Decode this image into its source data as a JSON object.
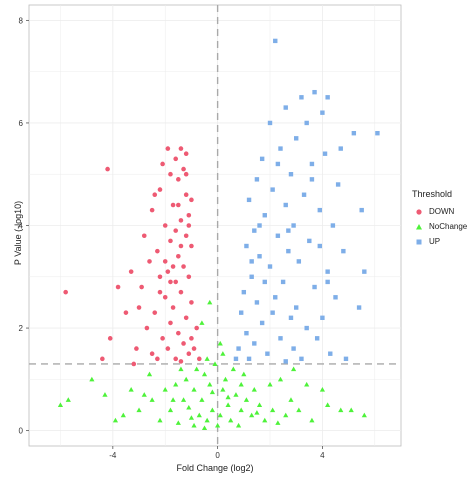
{
  "chart_data": {
    "type": "scatter",
    "title": "",
    "xlabel": "Fold Change (log2)",
    "ylabel": "P Value (-log10)",
    "xlim": [
      -7.2,
      7.0
    ],
    "ylim": [
      -0.3,
      8.3
    ],
    "x_ticks": [
      -4,
      0,
      4
    ],
    "y_ticks": [
      0,
      2,
      4,
      6,
      8
    ],
    "threshold_lines": {
      "x": 0,
      "y": 1.3
    },
    "grid": true,
    "legend_position": "right",
    "legend": {
      "title": "Threshold",
      "items": [
        {
          "label": "DOWN",
          "color": "#ee5a73",
          "shape": "circle"
        },
        {
          "label": "NoChange",
          "color": "#4ef23a",
          "shape": "triangle"
        },
        {
          "label": "UP",
          "color": "#7eaee8",
          "shape": "square"
        }
      ]
    },
    "series": [
      {
        "name": "DOWN",
        "color": "#ee5a73",
        "points": [
          [
            -1.9,
            5.5
          ],
          [
            -1.4,
            5.5
          ],
          [
            -1.2,
            5.4
          ],
          [
            -1.6,
            5.3
          ],
          [
            -2.1,
            5.2
          ],
          [
            -1.8,
            5.0
          ],
          [
            -1.3,
            5.1
          ],
          [
            -1.5,
            4.9
          ],
          [
            -2.2,
            4.7
          ],
          [
            -1.2,
            4.6
          ],
          [
            -1.0,
            4.5
          ],
          [
            -1.7,
            4.4
          ],
          [
            -2.5,
            4.3
          ],
          [
            -1.1,
            4.2
          ],
          [
            -1.4,
            4.1
          ],
          [
            -2.0,
            4.0
          ],
          [
            -1.6,
            3.9
          ],
          [
            -2.8,
            3.8
          ],
          [
            -1.2,
            3.8
          ],
          [
            -1.8,
            3.7
          ],
          [
            -2.3,
            3.5
          ],
          [
            -1.0,
            3.6
          ],
          [
            -1.5,
            3.4
          ],
          [
            -2.6,
            3.3
          ],
          [
            -1.3,
            3.2
          ],
          [
            -1.9,
            3.1
          ],
          [
            -2.2,
            3.0
          ],
          [
            -1.1,
            3.0
          ],
          [
            -1.6,
            2.9
          ],
          [
            -2.9,
            2.8
          ],
          [
            -1.4,
            2.7
          ],
          [
            -2.0,
            2.6
          ],
          [
            -1.0,
            2.5
          ],
          [
            -1.7,
            2.4
          ],
          [
            -2.4,
            2.3
          ],
          [
            -1.2,
            2.2
          ],
          [
            -1.8,
            2.1
          ],
          [
            -2.7,
            2.0
          ],
          [
            -1.5,
            1.9
          ],
          [
            -1.0,
            1.8
          ],
          [
            -2.1,
            1.8
          ],
          [
            -1.3,
            1.7
          ],
          [
            -1.9,
            1.6
          ],
          [
            -2.5,
            1.5
          ],
          [
            -1.1,
            1.5
          ],
          [
            -1.6,
            1.4
          ],
          [
            -2.3,
            1.4
          ],
          [
            -1.4,
            1.35
          ],
          [
            -0.9,
            1.6
          ],
          [
            -0.8,
            2.0
          ],
          [
            -0.7,
            1.4
          ],
          [
            -3.1,
            1.6
          ],
          [
            -3.0,
            2.4
          ],
          [
            -3.3,
            3.1
          ],
          [
            -3.5,
            2.3
          ],
          [
            -3.8,
            2.8
          ],
          [
            -4.1,
            1.8
          ],
          [
            -4.4,
            1.4
          ],
          [
            -4.2,
            5.1
          ],
          [
            -5.8,
            2.7
          ],
          [
            -3.2,
            1.3
          ],
          [
            -2.4,
            4.6
          ],
          [
            -1.2,
            5.0
          ],
          [
            -1.5,
            4.4
          ],
          [
            -2.0,
            3.3
          ],
          [
            -1.8,
            2.9
          ],
          [
            -1.4,
            3.6
          ],
          [
            -1.1,
            4.0
          ],
          [
            -1.7,
            3.2
          ],
          [
            -2.2,
            2.7
          ]
        ]
      },
      {
        "name": "NoChange",
        "color": "#4ef23a",
        "points": [
          [
            -0.8,
            1.2
          ],
          [
            -0.5,
            1.1
          ],
          [
            -1.2,
            1.0
          ],
          [
            -0.3,
            0.9
          ],
          [
            -1.6,
            0.9
          ],
          [
            -0.9,
            0.8
          ],
          [
            0.2,
            0.8
          ],
          [
            -2.0,
            0.8
          ],
          [
            0.7,
            0.7
          ],
          [
            -0.6,
            0.6
          ],
          [
            1.1,
            0.6
          ],
          [
            -1.3,
            0.6
          ],
          [
            0.4,
            0.5
          ],
          [
            -2.5,
            0.6
          ],
          [
            1.6,
            0.5
          ],
          [
            -0.2,
            0.4
          ],
          [
            0.9,
            0.4
          ],
          [
            -1.8,
            0.4
          ],
          [
            2.1,
            0.4
          ],
          [
            -0.7,
            0.3
          ],
          [
            0.1,
            0.3
          ],
          [
            1.3,
            0.3
          ],
          [
            -1.0,
            0.25
          ],
          [
            2.6,
            0.3
          ],
          [
            -3.0,
            0.4
          ],
          [
            -0.4,
            0.2
          ],
          [
            0.5,
            0.2
          ],
          [
            1.8,
            0.2
          ],
          [
            -1.5,
            0.15
          ],
          [
            0.0,
            0.1
          ],
          [
            -0.9,
            0.1
          ],
          [
            0.8,
            0.1
          ],
          [
            2.3,
            0.15
          ],
          [
            -2.2,
            0.2
          ],
          [
            3.1,
            0.4
          ],
          [
            -3.6,
            0.3
          ],
          [
            4.2,
            0.5
          ],
          [
            -4.3,
            0.7
          ],
          [
            5.1,
            0.4
          ],
          [
            -5.7,
            0.6
          ],
          [
            -6.0,
            0.5
          ],
          [
            4.7,
            0.4
          ],
          [
            -0.1,
            1.3
          ],
          [
            0.3,
            1.0
          ],
          [
            -1.4,
            1.2
          ],
          [
            1.0,
            1.1
          ],
          [
            2.4,
            1.0
          ],
          [
            -2.6,
            1.1
          ],
          [
            3.4,
            0.9
          ],
          [
            -3.3,
            0.8
          ],
          [
            0.6,
            1.2
          ],
          [
            -0.4,
            1.4
          ],
          [
            0.2,
            1.5
          ],
          [
            -0.6,
            2.1
          ],
          [
            0.1,
            1.7
          ],
          [
            -0.3,
            2.5
          ],
          [
            2.9,
            1.2
          ],
          [
            -4.8,
            1.0
          ],
          [
            4.0,
            0.8
          ],
          [
            1.4,
            0.8
          ],
          [
            -2.8,
            0.7
          ],
          [
            2.0,
            0.9
          ],
          [
            -1.1,
            0.45
          ],
          [
            0.4,
            0.65
          ],
          [
            -0.2,
            0.75
          ],
          [
            1.5,
            0.35
          ],
          [
            -1.7,
            0.6
          ],
          [
            2.8,
            0.6
          ],
          [
            -0.5,
            0.05
          ],
          [
            0.9,
            0.9
          ],
          [
            3.6,
            0.2
          ],
          [
            -3.9,
            0.2
          ],
          [
            5.6,
            0.3
          ]
        ]
      },
      {
        "name": "UP",
        "color": "#7eaee8",
        "points": [
          [
            2.2,
            7.6
          ],
          [
            3.7,
            6.6
          ],
          [
            4.2,
            6.5
          ],
          [
            3.2,
            6.5
          ],
          [
            2.6,
            6.3
          ],
          [
            4.0,
            6.2
          ],
          [
            3.4,
            6.0
          ],
          [
            2.0,
            6.0
          ],
          [
            5.2,
            5.8
          ],
          [
            6.1,
            5.8
          ],
          [
            3.0,
            5.7
          ],
          [
            2.4,
            5.5
          ],
          [
            4.1,
            5.4
          ],
          [
            1.7,
            5.3
          ],
          [
            3.6,
            5.2
          ],
          [
            2.8,
            5.0
          ],
          [
            1.5,
            4.9
          ],
          [
            4.6,
            4.8
          ],
          [
            2.1,
            4.7
          ],
          [
            3.3,
            4.6
          ],
          [
            1.2,
            4.5
          ],
          [
            2.6,
            4.4
          ],
          [
            3.9,
            4.3
          ],
          [
            5.5,
            4.3
          ],
          [
            1.8,
            4.2
          ],
          [
            2.9,
            4.0
          ],
          [
            4.4,
            4.0
          ],
          [
            1.4,
            3.9
          ],
          [
            2.3,
            3.8
          ],
          [
            3.5,
            3.7
          ],
          [
            1.1,
            3.6
          ],
          [
            2.7,
            3.5
          ],
          [
            4.8,
            3.5
          ],
          [
            1.6,
            3.4
          ],
          [
            3.1,
            3.3
          ],
          [
            2.0,
            3.2
          ],
          [
            4.2,
            3.1
          ],
          [
            1.3,
            3.0
          ],
          [
            2.5,
            2.9
          ],
          [
            5.6,
            3.1
          ],
          [
            3.7,
            2.8
          ],
          [
            1.0,
            2.7
          ],
          [
            2.2,
            2.6
          ],
          [
            4.5,
            2.6
          ],
          [
            1.5,
            2.5
          ],
          [
            3.0,
            2.4
          ],
          [
            0.9,
            2.3
          ],
          [
            2.8,
            2.2
          ],
          [
            4.0,
            2.2
          ],
          [
            1.7,
            2.1
          ],
          [
            3.4,
            2.0
          ],
          [
            1.1,
            1.9
          ],
          [
            2.4,
            1.8
          ],
          [
            3.8,
            1.8
          ],
          [
            1.4,
            1.7
          ],
          [
            2.9,
            1.6
          ],
          [
            0.8,
            1.6
          ],
          [
            4.3,
            1.5
          ],
          [
            1.9,
            1.5
          ],
          [
            3.2,
            1.4
          ],
          [
            1.2,
            1.4
          ],
          [
            2.6,
            1.35
          ],
          [
            4.9,
            1.4
          ],
          [
            0.7,
            1.4
          ],
          [
            1.8,
            2.9
          ],
          [
            3.6,
            4.9
          ],
          [
            2.3,
            5.2
          ],
          [
            4.7,
            5.5
          ],
          [
            1.6,
            4.0
          ],
          [
            3.9,
            3.6
          ],
          [
            5.4,
            2.4
          ],
          [
            1.3,
            3.3
          ],
          [
            2.1,
            2.3
          ],
          [
            4.2,
            2.9
          ],
          [
            2.7,
            3.9
          ]
        ]
      }
    ]
  }
}
